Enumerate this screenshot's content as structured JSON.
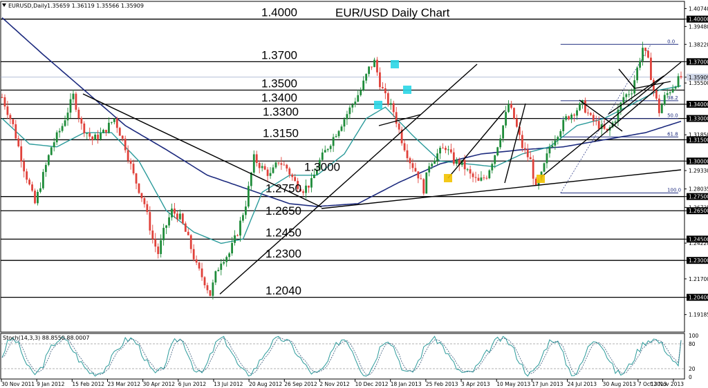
{
  "header": {
    "symbol": "EURUSD,Daily",
    "ohlc": "1.35659 1.36119 1.35566 1.35909",
    "icon": "triangle-down-icon"
  },
  "stoch_label": "Stoch(14,3,3) 88.8550 88.0007",
  "chart_data": {
    "type": "candlestick",
    "title": "EUR/USD Daily Chart",
    "ylim": [
      1.18,
      1.412
    ],
    "price_ticks": [
      "1.40740",
      "1.40000",
      "1.39480",
      "1.38220",
      "1.37000",
      "1.35909",
      "1.35500",
      "1.34000",
      "1.33000",
      "1.31850",
      "1.31500",
      "1.30000",
      "1.29330",
      "1.28035",
      "1.27500",
      "1.26735",
      "1.26500",
      "1.24500",
      "1.24220",
      "1.23000",
      "1.21700",
      "1.20400",
      "1.19185"
    ],
    "date_labels": [
      "30 Nov 2011",
      "9 Jan 2012",
      "15 Feb 2012",
      "23 Mar 2012",
      "30 Apr 2012",
      "6 Jun 2012",
      "13 Jul 2012",
      "20 Aug 2012",
      "26 Sep 2012",
      "2 Nov 2012",
      "10 Dec 2012",
      "18 Jan 2013",
      "25 Feb 2013",
      "3 Apr 2013",
      "10 May 2013",
      "17 Jun 2013",
      "24 Jul 2013",
      "30 Aug 2013",
      "7 Oct 2013",
      "13 Nov 2013"
    ],
    "levels": [
      {
        "label": "1.4000",
        "value": 1.4
      },
      {
        "label": "1.3700",
        "value": 1.37
      },
      {
        "label": "1.3500",
        "value": 1.35
      },
      {
        "label": "1.3400",
        "value": 1.34
      },
      {
        "label": "1.3300",
        "value": 1.33
      },
      {
        "label": "1.3150",
        "value": 1.315
      },
      {
        "label": "1.3000",
        "value": 1.3
      },
      {
        "label": "1.2750",
        "value": 1.275
      },
      {
        "label": "1.2650",
        "value": 1.265
      },
      {
        "label": "1.2450",
        "value": 1.245
      },
      {
        "label": "1.2300",
        "value": 1.23
      },
      {
        "label": "1.2040",
        "value": 1.204
      }
    ],
    "current_price": 1.35909,
    "fibonacci": [
      {
        "label": "0.0",
        "value": 1.3822
      },
      {
        "label": "38.2",
        "value": 1.3425
      },
      {
        "label": "50.0",
        "value": 1.33
      },
      {
        "label": "61.8",
        "value": 1.317
      },
      {
        "label": "100.0",
        "value": 1.2775
      }
    ],
    "price_path": [
      [
        0,
        1.345
      ],
      [
        4,
        1.325
      ],
      [
        8,
        1.295
      ],
      [
        12,
        1.27
      ],
      [
        15,
        1.29
      ],
      [
        18,
        1.31
      ],
      [
        22,
        1.325
      ],
      [
        26,
        1.346
      ],
      [
        29,
        1.325
      ],
      [
        33,
        1.315
      ],
      [
        37,
        1.32
      ],
      [
        41,
        1.33
      ],
      [
        45,
        1.31
      ],
      [
        48,
        1.29
      ],
      [
        52,
        1.27
      ],
      [
        55,
        1.245
      ],
      [
        57,
        1.235
      ],
      [
        59,
        1.25
      ],
      [
        62,
        1.265
      ],
      [
        65,
        1.26
      ],
      [
        68,
        1.245
      ],
      [
        71,
        1.226
      ],
      [
        74,
        1.215
      ],
      [
        76,
        1.206
      ],
      [
        78,
        1.22
      ],
      [
        80,
        1.23
      ],
      [
        83,
        1.235
      ],
      [
        86,
        1.25
      ],
      [
        89,
        1.27
      ],
      [
        92,
        1.302
      ],
      [
        95,
        1.295
      ],
      [
        98,
        1.29
      ],
      [
        101,
        1.3
      ],
      [
        104,
        1.295
      ],
      [
        107,
        1.285
      ],
      [
        110,
        1.28
      ],
      [
        113,
        1.285
      ],
      [
        116,
        1.3
      ],
      [
        119,
        1.31
      ],
      [
        122,
        1.32
      ],
      [
        125,
        1.33
      ],
      [
        128,
        1.34
      ],
      [
        131,
        1.35
      ],
      [
        134,
        1.365
      ],
      [
        136,
        1.37
      ],
      [
        138,
        1.355
      ],
      [
        140,
        1.345
      ],
      [
        143,
        1.335
      ],
      [
        146,
        1.315
      ],
      [
        149,
        1.3
      ],
      [
        152,
        1.29
      ],
      [
        154,
        1.28
      ],
      [
        156,
        1.298
      ],
      [
        159,
        1.305
      ],
      [
        162,
        1.31
      ],
      [
        165,
        1.3
      ],
      [
        168,
        1.298
      ],
      [
        171,
        1.29
      ],
      [
        174,
        1.285
      ],
      [
        177,
        1.29
      ],
      [
        180,
        1.305
      ],
      [
        183,
        1.325
      ],
      [
        185,
        1.34
      ],
      [
        187,
        1.33
      ],
      [
        190,
        1.31
      ],
      [
        193,
        1.3
      ],
      [
        195,
        1.28
      ],
      [
        197,
        1.29
      ],
      [
        200,
        1.31
      ],
      [
        203,
        1.32
      ],
      [
        206,
        1.33
      ],
      [
        209,
        1.335
      ],
      [
        212,
        1.34
      ],
      [
        215,
        1.33
      ],
      [
        218,
        1.325
      ],
      [
        221,
        1.32
      ],
      [
        224,
        1.33
      ],
      [
        227,
        1.345
      ],
      [
        230,
        1.35
      ],
      [
        232,
        1.365
      ],
      [
        234,
        1.38
      ],
      [
        236,
        1.37
      ],
      [
        238,
        1.35
      ],
      [
        240,
        1.335
      ],
      [
        242,
        1.345
      ],
      [
        244,
        1.35
      ],
      [
        246,
        1.355
      ],
      [
        248,
        1.3591
      ]
    ],
    "ma_fast": [
      [
        0,
        1.33
      ],
      [
        10,
        1.312
      ],
      [
        20,
        1.31
      ],
      [
        30,
        1.32
      ],
      [
        40,
        1.32
      ],
      [
        50,
        1.3
      ],
      [
        60,
        1.265
      ],
      [
        70,
        1.25
      ],
      [
        80,
        1.242
      ],
      [
        88,
        1.245
      ],
      [
        95,
        1.278
      ],
      [
        105,
        1.29
      ],
      [
        115,
        1.29
      ],
      [
        125,
        1.305
      ],
      [
        133,
        1.33
      ],
      [
        140,
        1.338
      ],
      [
        150,
        1.318
      ],
      [
        160,
        1.3
      ],
      [
        170,
        1.298
      ],
      [
        180,
        1.296
      ],
      [
        190,
        1.305
      ],
      [
        200,
        1.31
      ],
      [
        210,
        1.325
      ],
      [
        220,
        1.33
      ],
      [
        230,
        1.34
      ],
      [
        240,
        1.35
      ],
      [
        248,
        1.353
      ]
    ],
    "ma_slow": [
      [
        0,
        1.401
      ],
      [
        15,
        1.375
      ],
      [
        30,
        1.35
      ],
      [
        45,
        1.325
      ],
      [
        60,
        1.308
      ],
      [
        75,
        1.29
      ],
      [
        90,
        1.28
      ],
      [
        105,
        1.27
      ],
      [
        115,
        1.268
      ],
      [
        130,
        1.27
      ],
      [
        145,
        1.285
      ],
      [
        160,
        1.298
      ],
      [
        175,
        1.305
      ],
      [
        190,
        1.308
      ],
      [
        205,
        1.31
      ],
      [
        220,
        1.315
      ],
      [
        235,
        1.32
      ],
      [
        248,
        1.328
      ]
    ],
    "stochastic": {
      "ylim": [
        0,
        100
      ],
      "ticks": [
        "100",
        "80",
        "20",
        "0"
      ],
      "overbought": 80,
      "oversold": 20,
      "last_k": 88.855,
      "last_d": 88.0007
    }
  },
  "colors": {
    "background": "#ffffff",
    "bull_candle": "#1f8c3a",
    "bear_candle": "#e0413a",
    "ma_fast": "#2a9a9a",
    "ma_slow": "#1c2a7e",
    "level_line": "#000000",
    "fib_line": "#1c2a7e",
    "pivot_cyan": "#29d6e6",
    "pivot_yellow": "#f2c200",
    "stoch_line": "#2a9a9a"
  }
}
